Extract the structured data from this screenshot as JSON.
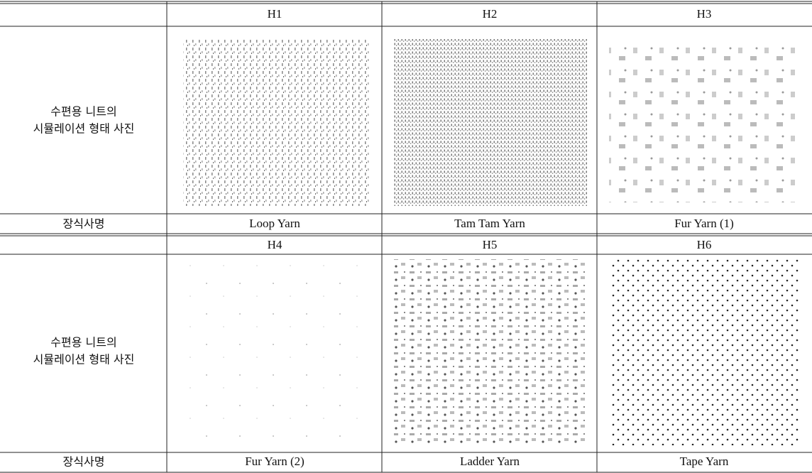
{
  "table": {
    "blocks": [
      {
        "headers": [
          "H1",
          "H2",
          "H3"
        ],
        "row_label": [
          "수편용 니트의",
          "시뮬레이션 형태 사진"
        ],
        "name_label": "장식사명",
        "names": [
          "Loop Yarn",
          "Tam Tam Yarn",
          "Fur Yarn (1)"
        ]
      },
      {
        "headers": [
          "H4",
          "H5",
          "H6"
        ],
        "row_label": [
          "수편용 니트의",
          "시뮬레이션 형태 사진"
        ],
        "name_label": "장식사명",
        "names": [
          "Fur Yarn (2)",
          "Ladder Yarn",
          "Tape Yarn"
        ]
      }
    ]
  }
}
